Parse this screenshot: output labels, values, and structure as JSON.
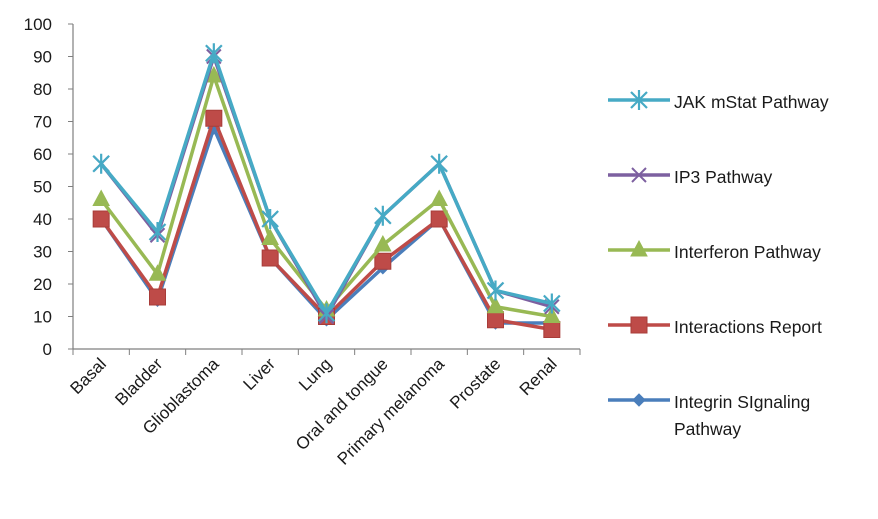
{
  "chart_data": {
    "type": "line",
    "categories": [
      "Basal",
      "Bladder",
      "Glioblastoma",
      "Liver",
      "Lung",
      "Oral and tongue",
      "Primary melanoma",
      "Prostate",
      "Renal"
    ],
    "ylim": [
      0,
      100
    ],
    "yticks": [
      "0",
      "10",
      "20",
      "30",
      "40",
      "50",
      "60",
      "70",
      "80",
      "90",
      "100"
    ],
    "grid": false,
    "legend_position": "right",
    "series": [
      {
        "name": "Integrin SIgnaling Pathway",
        "color": "#4a7ebb",
        "marker": "diamond",
        "values": [
          40,
          15,
          68,
          28,
          9,
          25,
          40,
          8,
          8
        ]
      },
      {
        "name": "Interactions Report",
        "color": "#be4b48",
        "marker": "square",
        "values": [
          40,
          16,
          71,
          28,
          10,
          27,
          40,
          9,
          6
        ]
      },
      {
        "name": "Interferon Pathway",
        "color": "#98b954",
        "marker": "triangle",
        "values": [
          46,
          23,
          84,
          34,
          12,
          32,
          46,
          13,
          10
        ]
      },
      {
        "name": "IP3 Pathway",
        "color": "#7d60a0",
        "marker": "x",
        "values": [
          57,
          35,
          90,
          40,
          10,
          41,
          57,
          18,
          13
        ]
      },
      {
        "name": "JAK mStat Pathway",
        "color": "#46aac5",
        "marker": "star",
        "values": [
          57,
          36,
          91,
          40,
          11,
          41,
          57,
          18,
          14
        ]
      }
    ],
    "legend": [
      "JAK mStat Pathway",
      "IP3 Pathway",
      "Interferon Pathway",
      "Interactions Report",
      "Integrin SIgnaling Pathway"
    ]
  }
}
